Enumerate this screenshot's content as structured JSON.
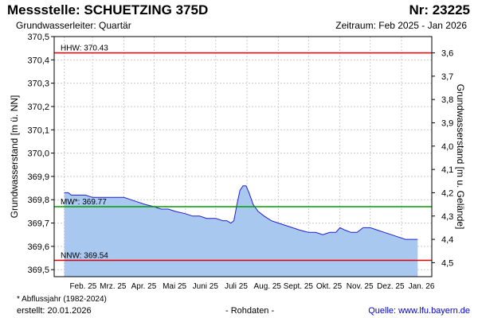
{
  "header": {
    "title": "Messstelle: SCHUETZING 375D",
    "number": "Nr: 23225",
    "subtitle": "Grundwasserleiter: Quartär",
    "period": "Zeitraum: Feb 2025 - Jan 2026"
  },
  "footer": {
    "footnote": "* Abflussjahr (1982-2024)",
    "created": "erstellt:  20.01.2026",
    "raw": "- Rohdaten -",
    "source": "Quelle:  www.lfu.bayern.de"
  },
  "colors": {
    "fill": "#a9c8f0",
    "line": "#1f1fd0",
    "hhw": "#e00000",
    "mw": "#00a000",
    "nnw": "#e00000",
    "grid": "#cccccc"
  },
  "chart_data": {
    "type": "area",
    "ylabel": "Grundwasserstand [m ü. NN]",
    "ylabel_right": "Grundwasserstand [m u. Gelände]",
    "ylim": [
      369.47,
      370.5
    ],
    "yticks": [
      "370,5",
      "370,4",
      "370,3",
      "370,2",
      "370,1",
      "370,0",
      "369,9",
      "369,8",
      "369,7",
      "369,6",
      "369,5"
    ],
    "yticks_right": [
      "3,6",
      "3,7",
      "3,8",
      "3,9",
      "4,0",
      "4,1",
      "4,2",
      "4,3",
      "4,4",
      "4,5"
    ],
    "xticks": [
      "Feb. 25",
      "Mrz. 25",
      "Apr. 25",
      "Mai 25",
      "Juni 25",
      "Juli 25",
      "Aug. 25",
      "Sept. 25",
      "Okt. 25",
      "Nov. 25",
      "Dez. 25",
      "Jan. 26"
    ],
    "grid": true,
    "reference_lines": [
      {
        "label": "HHW: 370.43",
        "value": 370.43
      },
      {
        "label": "MW*: 369.77",
        "value": 369.77
      },
      {
        "label": "NNW: 369.54",
        "value": 369.54
      }
    ],
    "series": [
      {
        "values": [
          [
            "2025-02-01",
            369.83
          ],
          [
            "2025-02-05",
            369.83
          ],
          [
            "2025-02-08",
            369.82
          ],
          [
            "2025-02-15",
            369.82
          ],
          [
            "2025-02-22",
            369.82
          ],
          [
            "2025-03-01",
            369.81
          ],
          [
            "2025-03-10",
            369.81
          ],
          [
            "2025-03-20",
            369.81
          ],
          [
            "2025-03-28",
            369.81
          ],
          [
            "2025-04-01",
            369.81
          ],
          [
            "2025-04-08",
            369.8
          ],
          [
            "2025-04-15",
            369.79
          ],
          [
            "2025-04-22",
            369.78
          ],
          [
            "2025-05-01",
            369.77
          ],
          [
            "2025-05-08",
            369.76
          ],
          [
            "2025-05-15",
            369.76
          ],
          [
            "2025-05-22",
            369.75
          ],
          [
            "2025-06-01",
            369.74
          ],
          [
            "2025-06-08",
            369.73
          ],
          [
            "2025-06-15",
            369.73
          ],
          [
            "2025-06-22",
            369.72
          ],
          [
            "2025-07-01",
            369.72
          ],
          [
            "2025-07-08",
            369.71
          ],
          [
            "2025-07-12",
            369.71
          ],
          [
            "2025-07-16",
            369.7
          ],
          [
            "2025-07-19",
            369.71
          ],
          [
            "2025-07-22",
            369.78
          ],
          [
            "2025-07-25",
            369.84
          ],
          [
            "2025-07-28",
            369.86
          ],
          [
            "2025-07-31",
            369.86
          ],
          [
            "2025-08-03",
            369.83
          ],
          [
            "2025-08-07",
            369.78
          ],
          [
            "2025-08-12",
            369.75
          ],
          [
            "2025-08-18",
            369.73
          ],
          [
            "2025-08-25",
            369.71
          ],
          [
            "2025-09-01",
            369.7
          ],
          [
            "2025-09-08",
            369.69
          ],
          [
            "2025-09-15",
            369.68
          ],
          [
            "2025-09-22",
            369.67
          ],
          [
            "2025-10-01",
            369.66
          ],
          [
            "2025-10-08",
            369.66
          ],
          [
            "2025-10-15",
            369.65
          ],
          [
            "2025-10-22",
            369.66
          ],
          [
            "2025-10-28",
            369.66
          ],
          [
            "2025-11-01",
            369.68
          ],
          [
            "2025-11-06",
            369.67
          ],
          [
            "2025-11-12",
            369.66
          ],
          [
            "2025-11-18",
            369.66
          ],
          [
            "2025-11-24",
            369.68
          ],
          [
            "2025-12-01",
            369.68
          ],
          [
            "2025-12-08",
            369.67
          ],
          [
            "2025-12-15",
            369.66
          ],
          [
            "2025-12-22",
            369.65
          ],
          [
            "2025-12-29",
            369.64
          ],
          [
            "2026-01-05",
            369.63
          ],
          [
            "2026-01-12",
            369.63
          ],
          [
            "2026-01-17",
            369.63
          ]
        ]
      }
    ]
  }
}
